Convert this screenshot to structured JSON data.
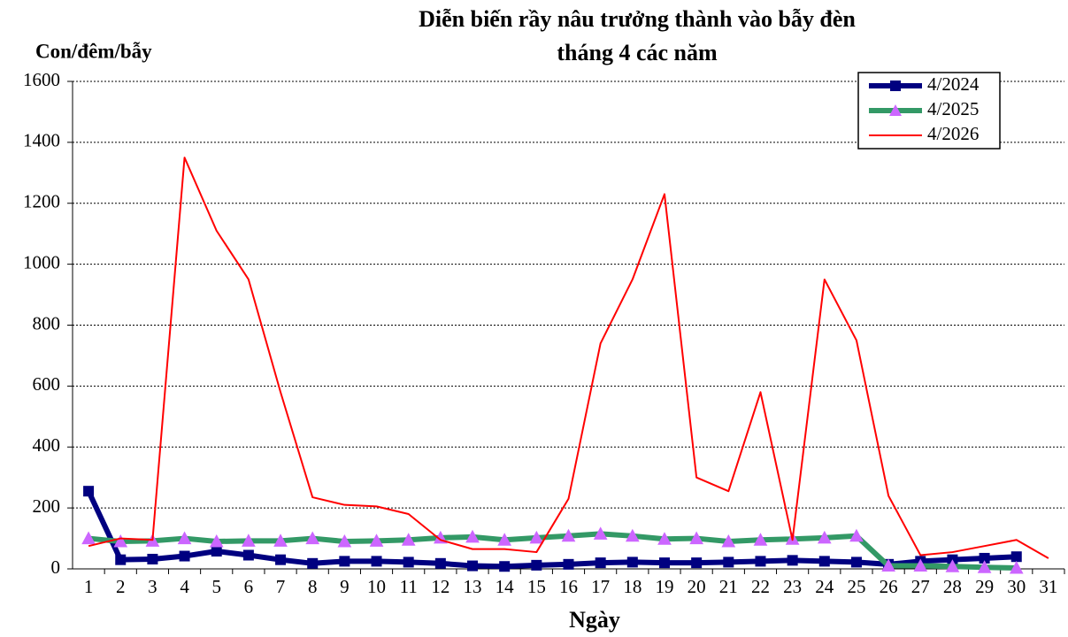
{
  "chart_data": {
    "type": "line",
    "title": [
      "Diễn biến rầy nâu trưởng thành vào bẫy đèn",
      "tháng 4 các năm"
    ],
    "y_label": "Con/đêm/bẫy",
    "x_label": "Ngày",
    "categories": [
      "1",
      "2",
      "3",
      "4",
      "5",
      "6",
      "7",
      "8",
      "9",
      "10",
      "11",
      "12",
      "13",
      "14",
      "15",
      "16",
      "17",
      "18",
      "19",
      "20",
      "21",
      "22",
      "23",
      "24",
      "25",
      "26",
      "27",
      "28",
      "29",
      "30",
      "31"
    ],
    "ylim": [
      0,
      1600
    ],
    "yticks": [
      0,
      200,
      400,
      600,
      800,
      1000,
      1200,
      1400,
      1600
    ],
    "grid": true,
    "legend": "top-right",
    "series": [
      {
        "name": "4/2024",
        "color": "#000080",
        "marker": "square",
        "line_width": 6,
        "values": [
          255,
          30,
          32,
          42,
          58,
          45,
          30,
          18,
          25,
          25,
          22,
          18,
          10,
          8,
          12,
          15,
          20,
          22,
          20,
          20,
          22,
          25,
          28,
          25,
          22,
          15,
          25,
          30,
          35,
          40,
          null
        ]
      },
      {
        "name": "4/2025",
        "color": "#339966",
        "marker": "triangle",
        "marker_color": "#cc66ff",
        "line_width": 6,
        "values": [
          100,
          90,
          92,
          100,
          90,
          92,
          92,
          100,
          90,
          92,
          95,
          102,
          105,
          95,
          102,
          108,
          115,
          108,
          98,
          100,
          90,
          95,
          98,
          102,
          108,
          10,
          10,
          8,
          5,
          3,
          null
        ]
      },
      {
        "name": "4/2026",
        "color": "#ff0000",
        "marker": "none",
        "line_width": 2,
        "values": [
          75,
          100,
          95,
          1350,
          1110,
          950,
          580,
          235,
          210,
          205,
          180,
          95,
          65,
          65,
          55,
          230,
          740,
          950,
          1230,
          300,
          255,
          580,
          95,
          950,
          750,
          240,
          45,
          55,
          75,
          95,
          35
        ]
      }
    ]
  }
}
